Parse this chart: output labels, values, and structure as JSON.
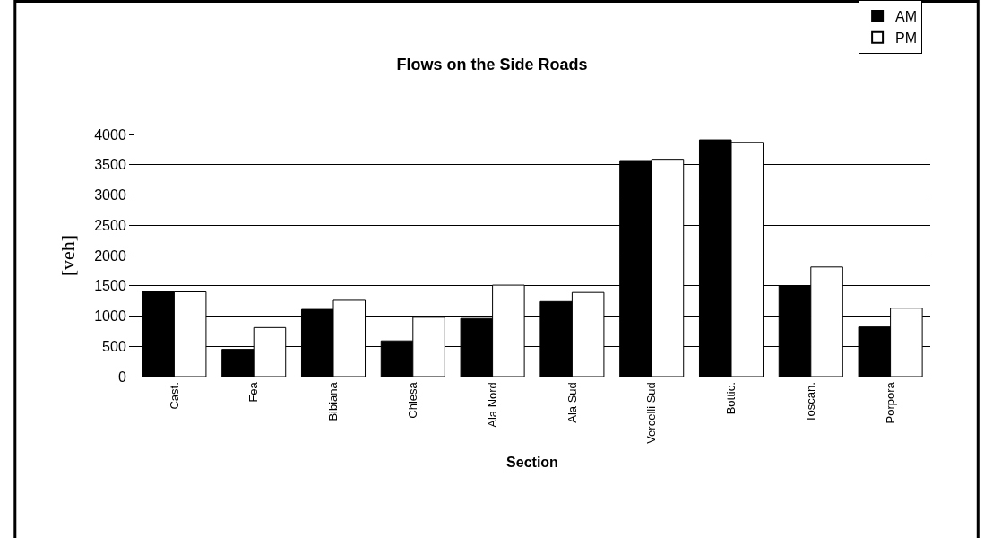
{
  "chart_data": {
    "type": "bar",
    "title": "Flows on the Side Roads",
    "xlabel": "Section",
    "ylabel": "[veh]",
    "categories": [
      "Cast.",
      "Fea",
      "Bibiana",
      "Chiesa",
      "Ala Nord",
      "Ala Sud",
      "Vercelli Sud",
      "Bottic.",
      "Toscan.",
      "Porpora"
    ],
    "series": [
      {
        "name": "AM",
        "color": "#000000",
        "values": [
          1410,
          450,
          1110,
          590,
          960,
          1240,
          3570,
          3910,
          1500,
          820
        ]
      },
      {
        "name": "PM",
        "color": "#ffffff",
        "values": [
          1400,
          810,
          1260,
          980,
          1510,
          1390,
          3590,
          3870,
          1810,
          1130
        ]
      }
    ],
    "ylim": [
      0,
      4000
    ],
    "yticks": [
      0,
      500,
      1000,
      1500,
      2000,
      2500,
      3000,
      3500,
      4000
    ],
    "grid": "y",
    "legend": "top right"
  }
}
